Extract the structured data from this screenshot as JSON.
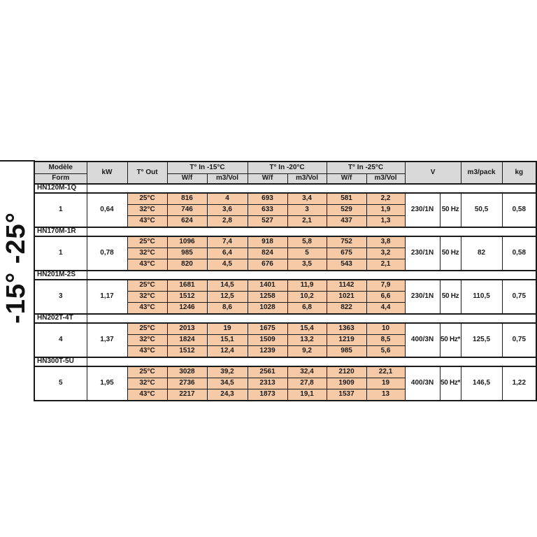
{
  "page": {
    "side_label": "-15° -25°"
  },
  "colors": {
    "header_bg": "#D9D9D9",
    "data_cell_bg": "#F6C9A7",
    "border": "#1A1A1A",
    "text": "#1A1A1A"
  },
  "table": {
    "header": {
      "modele": "Modèle",
      "form": "Form",
      "kw": "kW",
      "t_out": "T° Out",
      "groups": [
        {
          "label": "T° In -15°C"
        },
        {
          "label": "T° In -20°C"
        },
        {
          "label": "T° In -25°C"
        }
      ],
      "subcols": [
        "W/f",
        "m3/Vol",
        "W/f",
        "m3/Vol",
        "W/f",
        "m3/Vol"
      ],
      "v": "V",
      "m3pack": "m3/pack",
      "kg": "kg"
    },
    "sections": [
      {
        "model": "HN120M-1Q",
        "form": "1",
        "kw": "0,64",
        "rows": [
          {
            "t_out": "25°C",
            "wf15": "816",
            "m3v15": "4",
            "wf20": "693",
            "m3v20": "3,4",
            "wf25": "581",
            "m3v25": "2,2"
          },
          {
            "t_out": "32°C",
            "wf15": "746",
            "m3v15": "3,6",
            "wf20": "633",
            "m3v20": "3",
            "wf25": "529",
            "m3v25": "1,9"
          },
          {
            "t_out": "43°C",
            "wf15": "624",
            "m3v15": "2,8",
            "wf20": "527",
            "m3v20": "2,1",
            "wf25": "437",
            "m3v25": "1,3"
          }
        ],
        "voltage": "230/1N",
        "hz": "50 Hz",
        "m3pack": "50,5",
        "kg": "0,58"
      },
      {
        "model": "HN170M-1R",
        "form": "1",
        "kw": "0,78",
        "rows": [
          {
            "t_out": "25°C",
            "wf15": "1096",
            "m3v15": "7,4",
            "wf20": "918",
            "m3v20": "5,8",
            "wf25": "752",
            "m3v25": "3,8"
          },
          {
            "t_out": "32°C",
            "wf15": "985",
            "m3v15": "6,4",
            "wf20": "824",
            "m3v20": "5",
            "wf25": "675",
            "m3v25": "3,2"
          },
          {
            "t_out": "43°C",
            "wf15": "820",
            "m3v15": "4,5",
            "wf20": "676",
            "m3v20": "3,5",
            "wf25": "543",
            "m3v25": "2,1"
          }
        ],
        "voltage": "230/1N",
        "hz": "50 Hz",
        "m3pack": "82",
        "kg": "0,58"
      },
      {
        "model": "HN201M-2S",
        "form": "3",
        "kw": "1,17",
        "rows": [
          {
            "t_out": "25°C",
            "wf15": "1681",
            "m3v15": "14,5",
            "wf20": "1401",
            "m3v20": "11,9",
            "wf25": "1142",
            "m3v25": "7,9"
          },
          {
            "t_out": "32°C",
            "wf15": "1512",
            "m3v15": "12,5",
            "wf20": "1258",
            "m3v20": "10,2",
            "wf25": "1021",
            "m3v25": "6,6"
          },
          {
            "t_out": "43°C",
            "wf15": "1246",
            "m3v15": "8,6",
            "wf20": "1028",
            "m3v20": "6,8",
            "wf25": "822",
            "m3v25": "4,4"
          }
        ],
        "voltage": "230/1N",
        "hz": "50 Hz",
        "m3pack": "110,5",
        "kg": "0,75"
      },
      {
        "model": "HN202T-4T",
        "form": "4",
        "kw": "1,37",
        "rows": [
          {
            "t_out": "25°C",
            "wf15": "2013",
            "m3v15": "19",
            "wf20": "1675",
            "m3v20": "15,4",
            "wf25": "1363",
            "m3v25": "10"
          },
          {
            "t_out": "32°C",
            "wf15": "1824",
            "m3v15": "15,1",
            "wf20": "1509",
            "m3v20": "13,2",
            "wf25": "1219",
            "m3v25": "8,5"
          },
          {
            "t_out": "43°C",
            "wf15": "1512",
            "m3v15": "12,4",
            "wf20": "1239",
            "m3v20": "9,2",
            "wf25": "985",
            "m3v25": "5,6"
          }
        ],
        "voltage": "400/3N",
        "hz": "50 Hz*",
        "m3pack": "125,5",
        "kg": "0,75"
      },
      {
        "model": "HN300T-5U",
        "form": "5",
        "kw": "1,95",
        "rows": [
          {
            "t_out": "25°C",
            "wf15": "3028",
            "m3v15": "39,2",
            "wf20": "2561",
            "m3v20": "32,4",
            "wf25": "2120",
            "m3v25": "22,1"
          },
          {
            "t_out": "32°C",
            "wf15": "2736",
            "m3v15": "34,5",
            "wf20": "2313",
            "m3v20": "27,8",
            "wf25": "1909",
            "m3v25": "19"
          },
          {
            "t_out": "43°C",
            "wf15": "2217",
            "m3v15": "24,3",
            "wf20": "1873",
            "m3v20": "19,1",
            "wf25": "1537",
            "m3v25": "13"
          }
        ],
        "voltage": "400/3N",
        "hz": "50 Hz*",
        "m3pack": "146,5",
        "kg": "1,22"
      }
    ]
  }
}
